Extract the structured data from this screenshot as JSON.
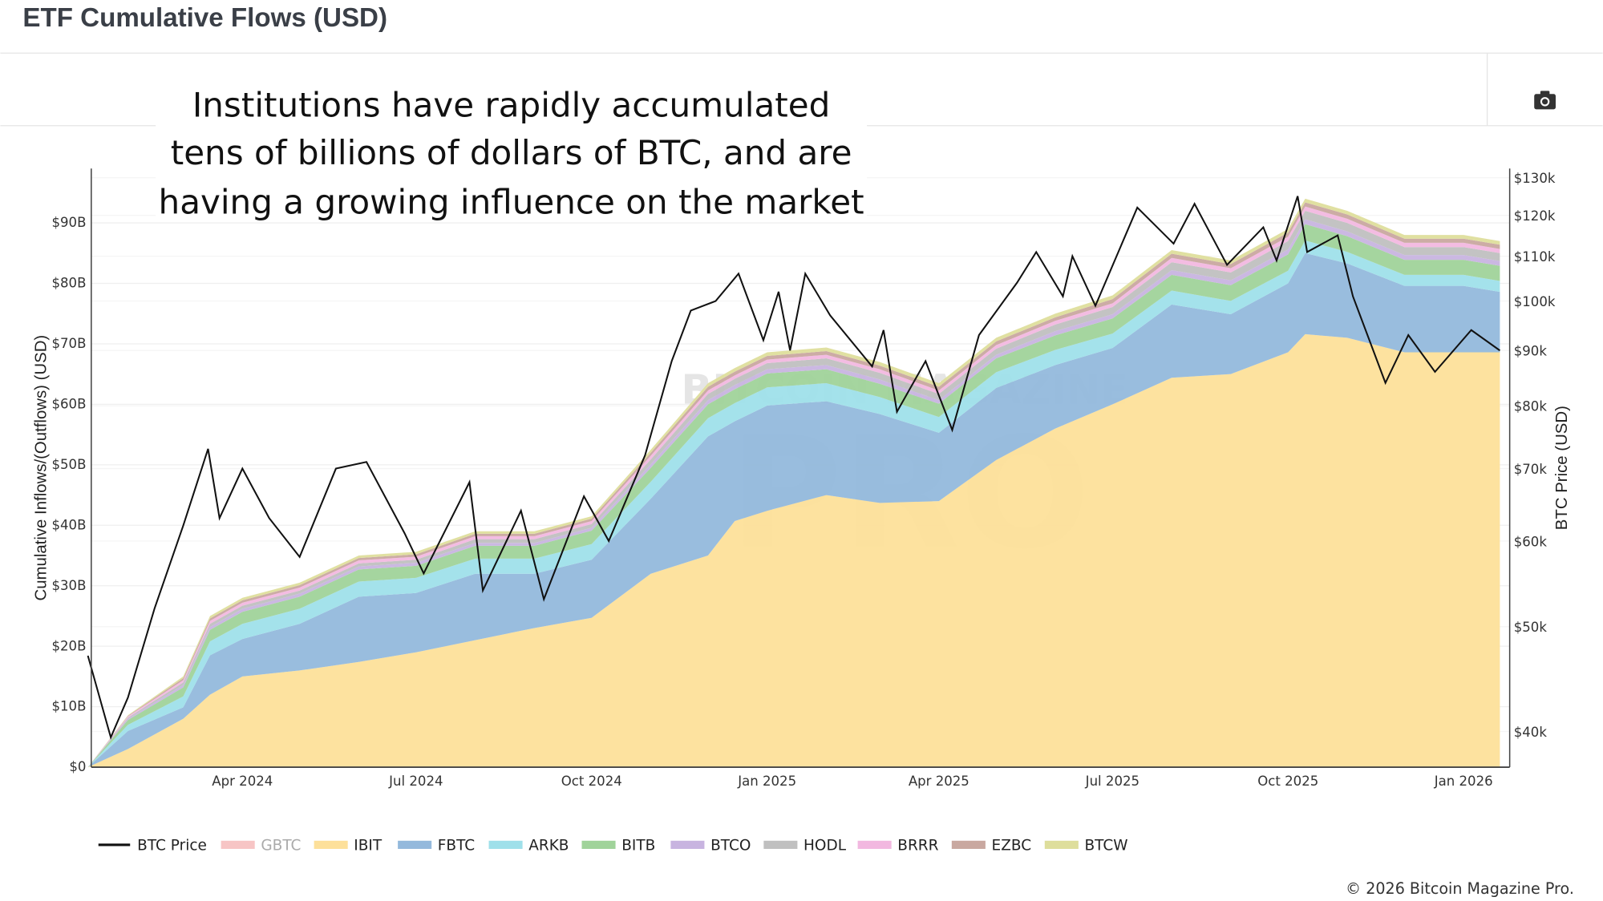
{
  "header": {
    "title": "ETF Cumulative Flows (USD)"
  },
  "toolbar": {
    "camera_icon": "camera-icon"
  },
  "annotation": [
    "Institutions have rapidly accumulated",
    "tens of billions of dollars of BTC, and are",
    "having a growing influence on the market"
  ],
  "watermark": "BITCOIN MAGAZINE PRO",
  "footer": {
    "copyright": "© 2026 Bitcoin Magazine Pro."
  },
  "chart_data": {
    "type": "area",
    "title": "ETF Cumulative Flows (USD)",
    "ylabel": "Cumulative Inflows/(Outflows) (USD)",
    "y2label": "BTC Price (USD)",
    "ylim": [
      0,
      98
    ],
    "y2lim": [
      36000,
      132000
    ],
    "y2scale": "log",
    "yticks": [
      {
        "v": 0,
        "l": "$0"
      },
      {
        "v": 10,
        "l": "$10B"
      },
      {
        "v": 20,
        "l": "$20B"
      },
      {
        "v": 30,
        "l": "$30B"
      },
      {
        "v": 40,
        "l": "$40B"
      },
      {
        "v": 50,
        "l": "$50B"
      },
      {
        "v": 60,
        "l": "$60B"
      },
      {
        "v": 70,
        "l": "$70B"
      },
      {
        "v": 80,
        "l": "$80B"
      },
      {
        "v": 90,
        "l": "$90B"
      }
    ],
    "y2ticks": [
      {
        "v": 40000,
        "l": "$40k"
      },
      {
        "v": 50000,
        "l": "$50k"
      },
      {
        "v": 60000,
        "l": "$60k"
      },
      {
        "v": 70000,
        "l": "$70k"
      },
      {
        "v": 80000,
        "l": "$80k"
      },
      {
        "v": 90000,
        "l": "$90k"
      },
      {
        "v": 100000,
        "l": "$100k"
      },
      {
        "v": 110000,
        "l": "$110k"
      },
      {
        "v": 120000,
        "l": "$120k"
      },
      {
        "v": 130000,
        "l": "$130k"
      }
    ],
    "xticks": [
      {
        "d": "2024-04-01",
        "l": "Apr 2024"
      },
      {
        "d": "2024-07-01",
        "l": "Jul 2024"
      },
      {
        "d": "2024-10-01",
        "l": "Oct 2024"
      },
      {
        "d": "2025-01-01",
        "l": "Jan 2025"
      },
      {
        "d": "2025-04-01",
        "l": "Apr 2025"
      },
      {
        "d": "2025-07-01",
        "l": "Jul 2025"
      },
      {
        "d": "2025-10-01",
        "l": "Oct 2025"
      },
      {
        "d": "2026-01-01",
        "l": "Jan 2026"
      }
    ],
    "legend": [
      {
        "name": "BTC Price",
        "color": "#111111",
        "kind": "line",
        "hidden": false
      },
      {
        "name": "GBTC",
        "color": "#f7c5c5",
        "kind": "area",
        "hidden": true
      },
      {
        "name": "IBIT",
        "color": "#fde09a",
        "kind": "area",
        "hidden": false
      },
      {
        "name": "FBTC",
        "color": "#94b9dc",
        "kind": "area",
        "hidden": false
      },
      {
        "name": "ARKB",
        "color": "#9fe0ea",
        "kind": "area",
        "hidden": false
      },
      {
        "name": "BITB",
        "color": "#a0d39a",
        "kind": "area",
        "hidden": false
      },
      {
        "name": "BTCO",
        "color": "#c8b4e0",
        "kind": "area",
        "hidden": false
      },
      {
        "name": "HODL",
        "color": "#c0c0c0",
        "kind": "area",
        "hidden": false
      },
      {
        "name": "BRRR",
        "color": "#f2b8e0",
        "kind": "area",
        "hidden": false
      },
      {
        "name": "EZBC",
        "color": "#c9a8a0",
        "kind": "area",
        "hidden": false
      },
      {
        "name": "BTCW",
        "color": "#dede9c",
        "kind": "area",
        "hidden": false
      }
    ],
    "flows_dates": [
      "2024-01-11",
      "2024-02-01",
      "2024-03-01",
      "2024-03-15",
      "2024-04-01",
      "2024-05-01",
      "2024-06-01",
      "2024-07-01",
      "2024-08-01",
      "2024-09-01",
      "2024-10-01",
      "2024-11-01",
      "2024-12-01",
      "2024-12-15",
      "2025-01-01",
      "2025-02-01",
      "2025-03-01",
      "2025-04-01",
      "2025-05-01",
      "2025-06-01",
      "2025-07-01",
      "2025-08-01",
      "2025-09-01",
      "2025-10-01",
      "2025-10-10",
      "2025-11-01",
      "2025-12-01",
      "2026-01-01",
      "2026-01-20"
    ],
    "flows_total_billions": [
      0,
      8.6,
      15,
      25,
      28,
      30.5,
      35,
      35.6,
      39,
      39,
      41.5,
      52.5,
      63.5,
      66,
      68.6,
      69.4,
      67,
      63.5,
      71,
      75,
      78,
      85.5,
      83.8,
      89,
      94,
      92,
      88,
      88,
      87
    ],
    "series": [
      {
        "name": "IBIT",
        "values": [
          0,
          3,
          8,
          12,
          15,
          16,
          17.4,
          19,
          21,
          23,
          24.7,
          32,
          35,
          40.7,
          42.4,
          45,
          43.7,
          44,
          50.8,
          56,
          60,
          64.4,
          65,
          68.6,
          71.6,
          71,
          68.6,
          68.6,
          68.6
        ]
      },
      {
        "name": "ARKB",
        "values": [
          0,
          1,
          1.8,
          2.3,
          2.5,
          2.5,
          2.5,
          2.5,
          2.5,
          2.5,
          2.6,
          2.8,
          3,
          3,
          3,
          3,
          2.8,
          2.6,
          2.6,
          2.5,
          2.4,
          2.3,
          2.2,
          2.1,
          2.1,
          1.9,
          1.8,
          1.8,
          1.8
        ]
      },
      {
        "name": "BITB",
        "values": [
          0,
          0.8,
          1.5,
          1.9,
          2,
          2,
          2,
          2,
          2.1,
          2.1,
          2.2,
          2.3,
          2.3,
          2.3,
          2.3,
          2.3,
          2.2,
          2.2,
          2.3,
          2.4,
          2.5,
          2.6,
          2.6,
          2.7,
          2.7,
          2.6,
          2.5,
          2.5,
          2.5
        ]
      },
      {
        "name": "BTCO",
        "values": [
          0,
          0.2,
          0.4,
          0.5,
          0.5,
          0.5,
          0.5,
          0.5,
          0.5,
          0.5,
          0.5,
          0.6,
          0.7,
          0.7,
          0.7,
          0.7,
          0.7,
          0.6,
          0.6,
          0.7,
          0.7,
          0.8,
          0.8,
          0.8,
          0.8,
          0.8,
          0.8,
          0.8,
          0.8
        ]
      },
      {
        "name": "HODL",
        "values": [
          0,
          0.2,
          0.4,
          0.5,
          0.5,
          0.5,
          0.5,
          0.5,
          0.6,
          0.6,
          0.6,
          0.8,
          1,
          1,
          1,
          1.1,
          1.1,
          1,
          1,
          1.1,
          1.2,
          1.3,
          1.3,
          1.4,
          1.4,
          1.4,
          1.3,
          1.3,
          1.3
        ]
      },
      {
        "name": "BRRR",
        "values": [
          0,
          0.2,
          0.4,
          0.5,
          0.5,
          0.5,
          0.5,
          0.5,
          0.5,
          0.5,
          0.5,
          0.6,
          0.6,
          0.6,
          0.6,
          0.6,
          0.6,
          0.6,
          0.6,
          0.6,
          0.6,
          0.7,
          0.7,
          0.7,
          0.7,
          0.7,
          0.7,
          0.7,
          0.7
        ]
      },
      {
        "name": "EZBC",
        "values": [
          0,
          0.1,
          0.3,
          0.4,
          0.4,
          0.4,
          0.4,
          0.4,
          0.4,
          0.4,
          0.4,
          0.5,
          0.6,
          0.6,
          0.6,
          0.6,
          0.6,
          0.6,
          0.6,
          0.6,
          0.7,
          0.7,
          0.7,
          0.7,
          0.7,
          0.7,
          0.7,
          0.7,
          0.7
        ]
      },
      {
        "name": "BTCW",
        "values": [
          0,
          0.1,
          0.3,
          0.4,
          0.4,
          0.4,
          0.4,
          0.4,
          0.4,
          0.4,
          0.4,
          0.5,
          0.6,
          0.6,
          0.6,
          0.6,
          0.6,
          0.6,
          0.6,
          0.6,
          0.6,
          0.6,
          0.6,
          0.6,
          0.6,
          0.6,
          0.6,
          0.6,
          0.6
        ]
      }
    ],
    "btc_price": [
      [
        "2024-01-11",
        47000
      ],
      [
        "2024-01-23",
        39500
      ],
      [
        "2024-02-01",
        43000
      ],
      [
        "2024-02-15",
        52000
      ],
      [
        "2024-03-01",
        62000
      ],
      [
        "2024-03-14",
        73000
      ],
      [
        "2024-03-20",
        63000
      ],
      [
        "2024-04-01",
        70000
      ],
      [
        "2024-04-15",
        63000
      ],
      [
        "2024-05-01",
        58000
      ],
      [
        "2024-05-20",
        70000
      ],
      [
        "2024-06-05",
        71000
      ],
      [
        "2024-06-25",
        61000
      ],
      [
        "2024-07-05",
        56000
      ],
      [
        "2024-07-29",
        68000
      ],
      [
        "2024-08-05",
        54000
      ],
      [
        "2024-08-25",
        64000
      ],
      [
        "2024-09-06",
        53000
      ],
      [
        "2024-09-27",
        66000
      ],
      [
        "2024-10-10",
        60000
      ],
      [
        "2024-10-29",
        72000
      ],
      [
        "2024-11-12",
        88000
      ],
      [
        "2024-11-22",
        98000
      ],
      [
        "2024-12-05",
        100000
      ],
      [
        "2024-12-17",
        106000
      ],
      [
        "2024-12-30",
        92000
      ],
      [
        "2025-01-07",
        102000
      ],
      [
        "2025-01-13",
        90000
      ],
      [
        "2025-01-21",
        106000
      ],
      [
        "2025-02-03",
        97000
      ],
      [
        "2025-02-25",
        87000
      ],
      [
        "2025-03-03",
        94000
      ],
      [
        "2025-03-10",
        79000
      ],
      [
        "2025-03-25",
        88000
      ],
      [
        "2025-04-08",
        76000
      ],
      [
        "2025-04-22",
        93000
      ],
      [
        "2025-05-12",
        104000
      ],
      [
        "2025-05-22",
        111000
      ],
      [
        "2025-06-05",
        101000
      ],
      [
        "2025-06-10",
        110000
      ],
      [
        "2025-06-22",
        99000
      ],
      [
        "2025-07-14",
        122000
      ],
      [
        "2025-08-02",
        113000
      ],
      [
        "2025-08-13",
        123000
      ],
      [
        "2025-08-30",
        108000
      ],
      [
        "2025-09-18",
        117000
      ],
      [
        "2025-09-25",
        109000
      ],
      [
        "2025-10-06",
        125000
      ],
      [
        "2025-10-11",
        111000
      ],
      [
        "2025-10-27",
        115000
      ],
      [
        "2025-11-04",
        101000
      ],
      [
        "2025-11-21",
        84000
      ],
      [
        "2025-12-03",
        93000
      ],
      [
        "2025-12-17",
        86000
      ],
      [
        "2026-01-05",
        94000
      ],
      [
        "2026-01-20",
        90000
      ]
    ]
  }
}
